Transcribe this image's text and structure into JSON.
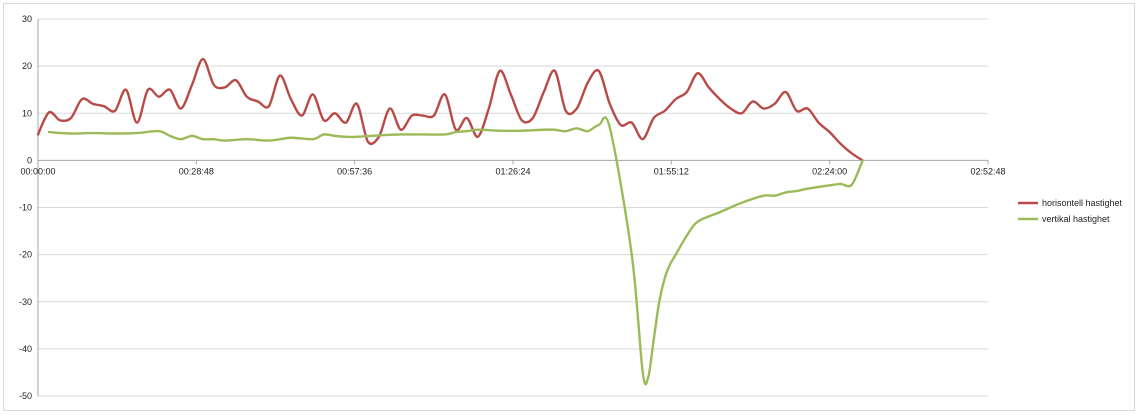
{
  "chart_data": {
    "type": "line",
    "title": "",
    "xlabel": "",
    "ylabel": "",
    "x_tick_labels": [
      "00:00:00",
      "00:28:48",
      "00:57:36",
      "01:26:24",
      "01:55:12",
      "02:24:00",
      "02:52:48"
    ],
    "y_tick_labels": [
      "30",
      "20",
      "10",
      "0",
      "-10",
      "-20",
      "-30",
      "-40",
      "-50"
    ],
    "xlim_minutes": [
      0,
      172.8
    ],
    "ylim": [
      -50,
      30
    ],
    "grid": "horizontal",
    "legend_position": "right",
    "series": [
      {
        "name": "horisontell hastighet",
        "color": "#b84b47",
        "x_minutes": [
          0,
          2,
          4,
          6,
          8,
          10,
          12,
          14,
          16,
          18,
          20,
          22,
          24,
          26,
          28,
          30,
          32,
          34,
          36,
          38,
          40,
          42,
          44,
          46,
          48,
          50,
          52,
          54,
          56,
          58,
          60,
          62,
          64,
          66,
          68,
          70,
          72,
          74,
          76,
          78,
          80,
          82,
          84,
          86,
          88,
          90,
          92,
          94,
          96,
          98,
          100,
          102,
          104,
          106,
          108,
          110,
          112,
          114,
          116,
          118,
          120,
          122,
          124,
          126,
          128,
          130,
          132,
          134,
          136,
          138,
          140,
          142,
          144,
          146,
          148,
          150
        ],
        "values": [
          5.5,
          10.2,
          8.5,
          9,
          13,
          12,
          11.5,
          10.5,
          15,
          8,
          15,
          13.5,
          15,
          11,
          16,
          21.5,
          16,
          15.5,
          17,
          13.5,
          12.5,
          11.5,
          18,
          13,
          9.5,
          14,
          8.5,
          10,
          8,
          12,
          4,
          5,
          11,
          6.5,
          9.5,
          9.5,
          9.5,
          14,
          6.5,
          9,
          5,
          11,
          19,
          14,
          8.5,
          9,
          14.5,
          19,
          10.5,
          11,
          16.5,
          19,
          12,
          7.5,
          8,
          4.5,
          9,
          10.5,
          13,
          14.5,
          18.5,
          15.5,
          13,
          11,
          10,
          12.5,
          11,
          12,
          14.5,
          10.5,
          11,
          8,
          6,
          3.5,
          1.5,
          0
        ]
      },
      {
        "name": "vertikal hastighet",
        "color": "#9bbb59",
        "x_minutes": [
          2,
          6,
          10,
          14,
          18,
          22,
          24,
          26,
          28,
          30,
          32,
          34,
          38,
          42,
          46,
          50,
          52,
          54,
          56,
          58,
          62,
          66,
          70,
          74,
          76,
          78,
          80,
          84,
          88,
          92,
          94,
          96,
          98,
          100,
          102,
          104,
          108,
          110,
          111,
          112,
          113,
          114,
          115,
          116,
          118,
          120,
          124,
          128,
          132,
          134,
          136,
          138,
          140,
          144,
          146,
          148,
          150
        ],
        "values": [
          6,
          5.7,
          5.8,
          5.7,
          5.8,
          6.2,
          5.2,
          4.5,
          5.2,
          4.5,
          4.5,
          4.2,
          4.5,
          4.2,
          4.8,
          4.5,
          5.5,
          5.2,
          5,
          5,
          5.3,
          5.5,
          5.5,
          5.5,
          6,
          6.2,
          6.5,
          6.3,
          6.3,
          6.5,
          6.5,
          6.2,
          6.8,
          6.2,
          7.5,
          7,
          -20,
          -45,
          -46,
          -38,
          -30,
          -25,
          -22,
          -20,
          -16,
          -13,
          -11,
          -9,
          -7.5,
          -7.5,
          -6.8,
          -6.5,
          -6,
          -5.3,
          -5,
          -5.2,
          0
        ]
      }
    ]
  }
}
